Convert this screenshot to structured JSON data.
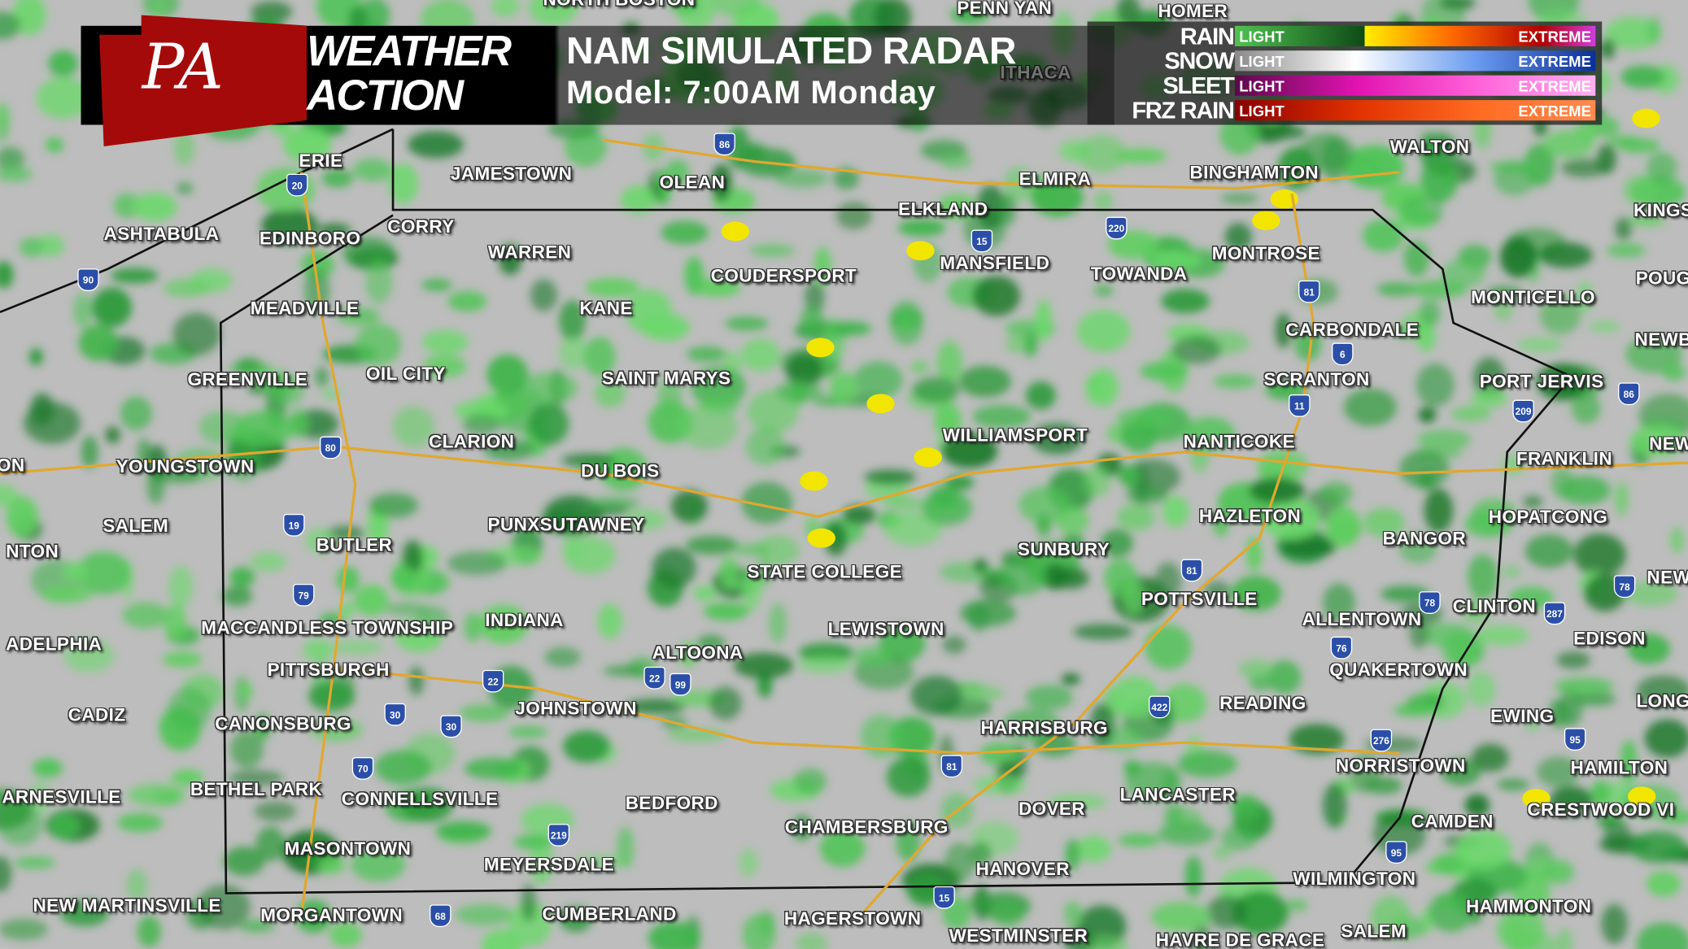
{
  "header": {
    "logo": {
      "mark": "PA",
      "line1": "WEATHER",
      "line2": "ACTION"
    },
    "title": "NAM SIMULATED RADAR",
    "subtitle": "Model: 7:00AM  Monday"
  },
  "legend": [
    {
      "type": "RAIN",
      "low": "LIGHT",
      "high": "EXTREME",
      "colors": [
        "#4fc24f",
        "#0e4a17",
        "#ffee00",
        "#ff6a00",
        "#b00000",
        "#d23be0"
      ]
    },
    {
      "type": "SNOW",
      "low": "LIGHT",
      "high": "EXTREME",
      "colors": [
        "#8a8a8a",
        "#ffffff",
        "#6b9cf0",
        "#0a2f9a"
      ]
    },
    {
      "type": "SLEET",
      "low": "LIGHT",
      "high": "EXTREME",
      "colors": [
        "#5a0a4a",
        "#e012b0",
        "#ff60d8",
        "#ffb0f0"
      ]
    },
    {
      "type": "FRZ RAIN",
      "low": "LIGHT",
      "high": "EXTREME",
      "colors": [
        "#8a0000",
        "#e03000",
        "#ff6a20",
        "#ff8a50"
      ]
    }
  ],
  "cities": [
    "NORTH BOSTON",
    "PENN YAN",
    "HOMER",
    "ITHACA",
    "ERIE",
    "JAMESTOWN",
    "OLEAN",
    "ELMIRA",
    "BINGHAMTON",
    "WALTON",
    "ELKLAND",
    "ASHTABULA",
    "EDINBORO",
    "CORRY",
    "WARREN",
    "COUDERSPORT",
    "MANSFIELD",
    "TOWANDA",
    "MONTROSE",
    "KINGS",
    "MONTICELLO",
    "POUG",
    "MEADVILLE",
    "KANE",
    "CARBONDALE",
    "NEWB",
    "GREENVILLE",
    "OIL CITY",
    "SAINT MARYS",
    "SCRANTON",
    "PORT JERVIS",
    "CLARION",
    "WILLIAMSPORT",
    "NANTICOKE",
    "NEW",
    "ON",
    "YOUNGSTOWN",
    "DU BOIS",
    "FRANKLIN",
    "SALEM",
    "PUNXSUTAWNEY",
    "HAZLETON",
    "HOPATCONG",
    "BUTLER",
    "SUNBURY",
    "BANGOR",
    "NTON",
    "STATE COLLEGE",
    "POTTSVILLE",
    "CLINTON",
    "NEW",
    "MACCANDLESS TOWNSHIP",
    "INDIANA",
    "LEWISTOWN",
    "ALLENTOWN",
    "EDISON",
    "ADELPHIA",
    "ALTOONA",
    "PITTSBURGH",
    "QUAKERTOWN",
    "CADIZ",
    "JOHNSTOWN",
    "READING",
    "EWING",
    "LONG",
    "CANONSBURG",
    "HARRISBURG",
    "NORRISTOWN",
    "HAMILTON",
    "ARNESVILLE",
    "BETHEL PARK",
    "CONNELLSVILLE",
    "BEDFORD",
    "LANCASTER",
    "DOVER",
    "CRESTWOOD VI",
    "CAMDEN",
    "CHAMBERSBURG",
    "MASONTOWN",
    "MEYERSDALE",
    "HANOVER",
    "WILMINGTON",
    "NEW MARTINSVILLE",
    "MORGANTOWN",
    "CUMBERLAND",
    "HAGERSTOWN",
    "HAMMONTON",
    "WESTMINSTER",
    "HAVRE DE GRACE",
    "SALEM"
  ],
  "highways": [
    "86",
    "90",
    "20",
    "80",
    "15",
    "220",
    "81",
    "6",
    "11",
    "209",
    "86",
    "19",
    "79",
    "81",
    "78",
    "287",
    "78",
    "22",
    "22",
    "99",
    "30",
    "30",
    "70",
    "422",
    "76",
    "81",
    "276",
    "95",
    "68",
    "219",
    "15",
    "95"
  ]
}
